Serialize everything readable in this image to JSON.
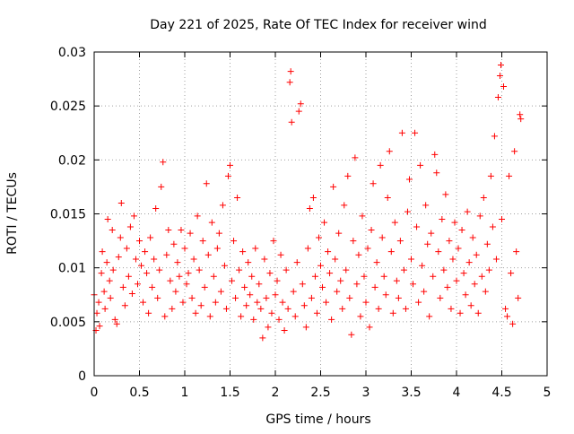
{
  "chart_data": {
    "type": "scatter",
    "title": "Day 221 of 2025, Rate Of TEC Index for receiver wind",
    "xlabel": "GPS time / hours",
    "ylabel": "ROTI / TECUs",
    "xlim": [
      0,
      5
    ],
    "ylim": [
      0,
      0.03
    ],
    "xticks": [
      0,
      0.5,
      1,
      1.5,
      2,
      2.5,
      3,
      3.5,
      4,
      4.5,
      5
    ],
    "xtick_labels": [
      "0",
      "0.5",
      "1",
      "1.5",
      "2",
      "2.5",
      "3",
      "3.5",
      "4",
      "4.5",
      "5"
    ],
    "yticks": [
      0,
      0.005,
      0.01,
      0.015,
      0.02,
      0.025,
      0.03
    ],
    "ytick_labels": [
      "0",
      "0.005",
      "0.01",
      "0.015",
      "0.02",
      "0.025",
      "0.03"
    ],
    "grid": true,
    "marker": "+",
    "marker_color": "#ff0000",
    "series": [
      {
        "points": [
          [
            0.0,
            0.0075
          ],
          [
            0.02,
            0.0042
          ],
          [
            0.03,
            0.0058
          ],
          [
            0.05,
            0.0068
          ],
          [
            0.06,
            0.0046
          ],
          [
            0.08,
            0.0095
          ],
          [
            0.09,
            0.0115
          ],
          [
            0.11,
            0.0078
          ],
          [
            0.12,
            0.0062
          ],
          [
            0.14,
            0.0105
          ],
          [
            0.15,
            0.0145
          ],
          [
            0.17,
            0.0088
          ],
          [
            0.18,
            0.0072
          ],
          [
            0.2,
            0.0135
          ],
          [
            0.21,
            0.0098
          ],
          [
            0.23,
            0.0052
          ],
          [
            0.25,
            0.0048
          ],
          [
            0.27,
            0.011
          ],
          [
            0.29,
            0.0128
          ],
          [
            0.3,
            0.016
          ],
          [
            0.32,
            0.0082
          ],
          [
            0.34,
            0.0065
          ],
          [
            0.36,
            0.0118
          ],
          [
            0.38,
            0.0092
          ],
          [
            0.4,
            0.0138
          ],
          [
            0.42,
            0.0076
          ],
          [
            0.44,
            0.0148
          ],
          [
            0.46,
            0.0108
          ],
          [
            0.48,
            0.0085
          ],
          [
            0.5,
            0.0125
          ],
          [
            0.52,
            0.0102
          ],
          [
            0.54,
            0.0068
          ],
          [
            0.56,
            0.0115
          ],
          [
            0.58,
            0.0095
          ],
          [
            0.6,
            0.0058
          ],
          [
            0.62,
            0.0128
          ],
          [
            0.64,
            0.0082
          ],
          [
            0.66,
            0.0108
          ],
          [
            0.68,
            0.0155
          ],
          [
            0.7,
            0.0072
          ],
          [
            0.72,
            0.0098
          ],
          [
            0.74,
            0.0175
          ],
          [
            0.76,
            0.0198
          ],
          [
            0.78,
            0.0055
          ],
          [
            0.8,
            0.0112
          ],
          [
            0.82,
            0.0135
          ],
          [
            0.84,
            0.0088
          ],
          [
            0.86,
            0.0062
          ],
          [
            0.88,
            0.0122
          ],
          [
            0.9,
            0.0078
          ],
          [
            0.92,
            0.0105
          ],
          [
            0.94,
            0.0092
          ],
          [
            0.96,
            0.0135
          ],
          [
            0.98,
            0.0068
          ],
          [
            1.0,
            0.0118
          ],
          [
            1.02,
            0.0085
          ],
          [
            1.04,
            0.0095
          ],
          [
            1.06,
            0.0132
          ],
          [
            1.08,
            0.0072
          ],
          [
            1.1,
            0.0108
          ],
          [
            1.12,
            0.0058
          ],
          [
            1.14,
            0.0148
          ],
          [
            1.16,
            0.0098
          ],
          [
            1.18,
            0.0065
          ],
          [
            1.2,
            0.0125
          ],
          [
            1.22,
            0.0082
          ],
          [
            1.24,
            0.0178
          ],
          [
            1.26,
            0.0112
          ],
          [
            1.28,
            0.0055
          ],
          [
            1.3,
            0.0142
          ],
          [
            1.32,
            0.0092
          ],
          [
            1.34,
            0.0068
          ],
          [
            1.36,
            0.0118
          ],
          [
            1.38,
            0.0132
          ],
          [
            1.4,
            0.0078
          ],
          [
            1.42,
            0.0158
          ],
          [
            1.44,
            0.0102
          ],
          [
            1.46,
            0.0062
          ],
          [
            1.48,
            0.0185
          ],
          [
            1.5,
            0.0195
          ],
          [
            1.52,
            0.0088
          ],
          [
            1.54,
            0.0125
          ],
          [
            1.56,
            0.0072
          ],
          [
            1.58,
            0.0165
          ],
          [
            1.6,
            0.0098
          ],
          [
            1.62,
            0.0055
          ],
          [
            1.64,
            0.0115
          ],
          [
            1.66,
            0.0082
          ],
          [
            1.68,
            0.0065
          ],
          [
            1.7,
            0.0105
          ],
          [
            1.72,
            0.0075
          ],
          [
            1.74,
            0.0092
          ],
          [
            1.76,
            0.0052
          ],
          [
            1.78,
            0.0118
          ],
          [
            1.8,
            0.0068
          ],
          [
            1.82,
            0.0085
          ],
          [
            1.84,
            0.0062
          ],
          [
            1.86,
            0.0035
          ],
          [
            1.88,
            0.0108
          ],
          [
            1.9,
            0.0072
          ],
          [
            1.92,
            0.0045
          ],
          [
            1.94,
            0.0095
          ],
          [
            1.96,
            0.0058
          ],
          [
            1.98,
            0.0125
          ],
          [
            2.0,
            0.0075
          ],
          [
            2.02,
            0.0088
          ],
          [
            2.04,
            0.0052
          ],
          [
            2.06,
            0.0112
          ],
          [
            2.08,
            0.0068
          ],
          [
            2.1,
            0.0042
          ],
          [
            2.12,
            0.0098
          ],
          [
            2.14,
            0.0062
          ],
          [
            2.16,
            0.0272
          ],
          [
            2.17,
            0.0282
          ],
          [
            2.18,
            0.0235
          ],
          [
            2.2,
            0.0078
          ],
          [
            2.22,
            0.0055
          ],
          [
            2.24,
            0.0105
          ],
          [
            2.26,
            0.0245
          ],
          [
            2.28,
            0.0252
          ],
          [
            2.3,
            0.0085
          ],
          [
            2.32,
            0.0065
          ],
          [
            2.34,
            0.0045
          ],
          [
            2.36,
            0.0118
          ],
          [
            2.38,
            0.0155
          ],
          [
            2.4,
            0.0072
          ],
          [
            2.42,
            0.0165
          ],
          [
            2.44,
            0.0092
          ],
          [
            2.46,
            0.0058
          ],
          [
            2.48,
            0.0128
          ],
          [
            2.5,
            0.0102
          ],
          [
            2.52,
            0.0082
          ],
          [
            2.54,
            0.0142
          ],
          [
            2.56,
            0.0068
          ],
          [
            2.58,
            0.0115
          ],
          [
            2.6,
            0.0095
          ],
          [
            2.62,
            0.0052
          ],
          [
            2.64,
            0.0175
          ],
          [
            2.66,
            0.0108
          ],
          [
            2.68,
            0.0078
          ],
          [
            2.7,
            0.0132
          ],
          [
            2.72,
            0.0088
          ],
          [
            2.74,
            0.0062
          ],
          [
            2.76,
            0.0158
          ],
          [
            2.78,
            0.0098
          ],
          [
            2.8,
            0.0185
          ],
          [
            2.82,
            0.0072
          ],
          [
            2.84,
            0.0038
          ],
          [
            2.86,
            0.0125
          ],
          [
            2.88,
            0.0202
          ],
          [
            2.9,
            0.0085
          ],
          [
            2.92,
            0.0112
          ],
          [
            2.94,
            0.0055
          ],
          [
            2.96,
            0.0148
          ],
          [
            2.98,
            0.0092
          ],
          [
            3.0,
            0.0068
          ],
          [
            3.02,
            0.0118
          ],
          [
            3.04,
            0.0045
          ],
          [
            3.06,
            0.0135
          ],
          [
            3.08,
            0.0178
          ],
          [
            3.1,
            0.0082
          ],
          [
            3.12,
            0.0105
          ],
          [
            3.14,
            0.0062
          ],
          [
            3.16,
            0.0195
          ],
          [
            3.18,
            0.0128
          ],
          [
            3.2,
            0.0092
          ],
          [
            3.22,
            0.0075
          ],
          [
            3.24,
            0.0165
          ],
          [
            3.26,
            0.0208
          ],
          [
            3.28,
            0.0115
          ],
          [
            3.3,
            0.0058
          ],
          [
            3.32,
            0.0142
          ],
          [
            3.34,
            0.0088
          ],
          [
            3.36,
            0.0072
          ],
          [
            3.38,
            0.0125
          ],
          [
            3.4,
            0.0225
          ],
          [
            3.42,
            0.0098
          ],
          [
            3.44,
            0.0062
          ],
          [
            3.46,
            0.0152
          ],
          [
            3.48,
            0.0182
          ],
          [
            3.5,
            0.0108
          ],
          [
            3.52,
            0.0085
          ],
          [
            3.54,
            0.0225
          ],
          [
            3.56,
            0.0138
          ],
          [
            3.58,
            0.0068
          ],
          [
            3.6,
            0.0195
          ],
          [
            3.62,
            0.0102
          ],
          [
            3.64,
            0.0078
          ],
          [
            3.66,
            0.0158
          ],
          [
            3.68,
            0.0122
          ],
          [
            3.7,
            0.0055
          ],
          [
            3.72,
            0.0132
          ],
          [
            3.74,
            0.0092
          ],
          [
            3.76,
            0.0205
          ],
          [
            3.78,
            0.0188
          ],
          [
            3.8,
            0.0115
          ],
          [
            3.82,
            0.0072
          ],
          [
            3.84,
            0.0145
          ],
          [
            3.86,
            0.0098
          ],
          [
            3.88,
            0.0168
          ],
          [
            3.9,
            0.0082
          ],
          [
            3.92,
            0.0125
          ],
          [
            3.94,
            0.0062
          ],
          [
            3.96,
            0.0108
          ],
          [
            3.98,
            0.0142
          ],
          [
            4.0,
            0.0088
          ],
          [
            4.02,
            0.0118
          ],
          [
            4.04,
            0.0058
          ],
          [
            4.06,
            0.0135
          ],
          [
            4.08,
            0.0095
          ],
          [
            4.1,
            0.0075
          ],
          [
            4.12,
            0.0152
          ],
          [
            4.14,
            0.0105
          ],
          [
            4.16,
            0.0065
          ],
          [
            4.18,
            0.0128
          ],
          [
            4.2,
            0.0085
          ],
          [
            4.22,
            0.0112
          ],
          [
            4.24,
            0.0058
          ],
          [
            4.26,
            0.0148
          ],
          [
            4.28,
            0.0092
          ],
          [
            4.3,
            0.0165
          ],
          [
            4.32,
            0.0078
          ],
          [
            4.34,
            0.0122
          ],
          [
            4.36,
            0.0098
          ],
          [
            4.38,
            0.0185
          ],
          [
            4.4,
            0.0138
          ],
          [
            4.42,
            0.0222
          ],
          [
            4.44,
            0.0108
          ],
          [
            4.46,
            0.0258
          ],
          [
            4.48,
            0.0278
          ],
          [
            4.49,
            0.0288
          ],
          [
            4.5,
            0.0145
          ],
          [
            4.52,
            0.0268
          ],
          [
            4.54,
            0.0062
          ],
          [
            4.56,
            0.0055
          ],
          [
            4.58,
            0.0185
          ],
          [
            4.6,
            0.0095
          ],
          [
            4.62,
            0.0048
          ],
          [
            4.64,
            0.0208
          ],
          [
            4.66,
            0.0115
          ],
          [
            4.68,
            0.0072
          ],
          [
            4.7,
            0.0242
          ],
          [
            4.71,
            0.0238
          ]
        ]
      }
    ]
  }
}
